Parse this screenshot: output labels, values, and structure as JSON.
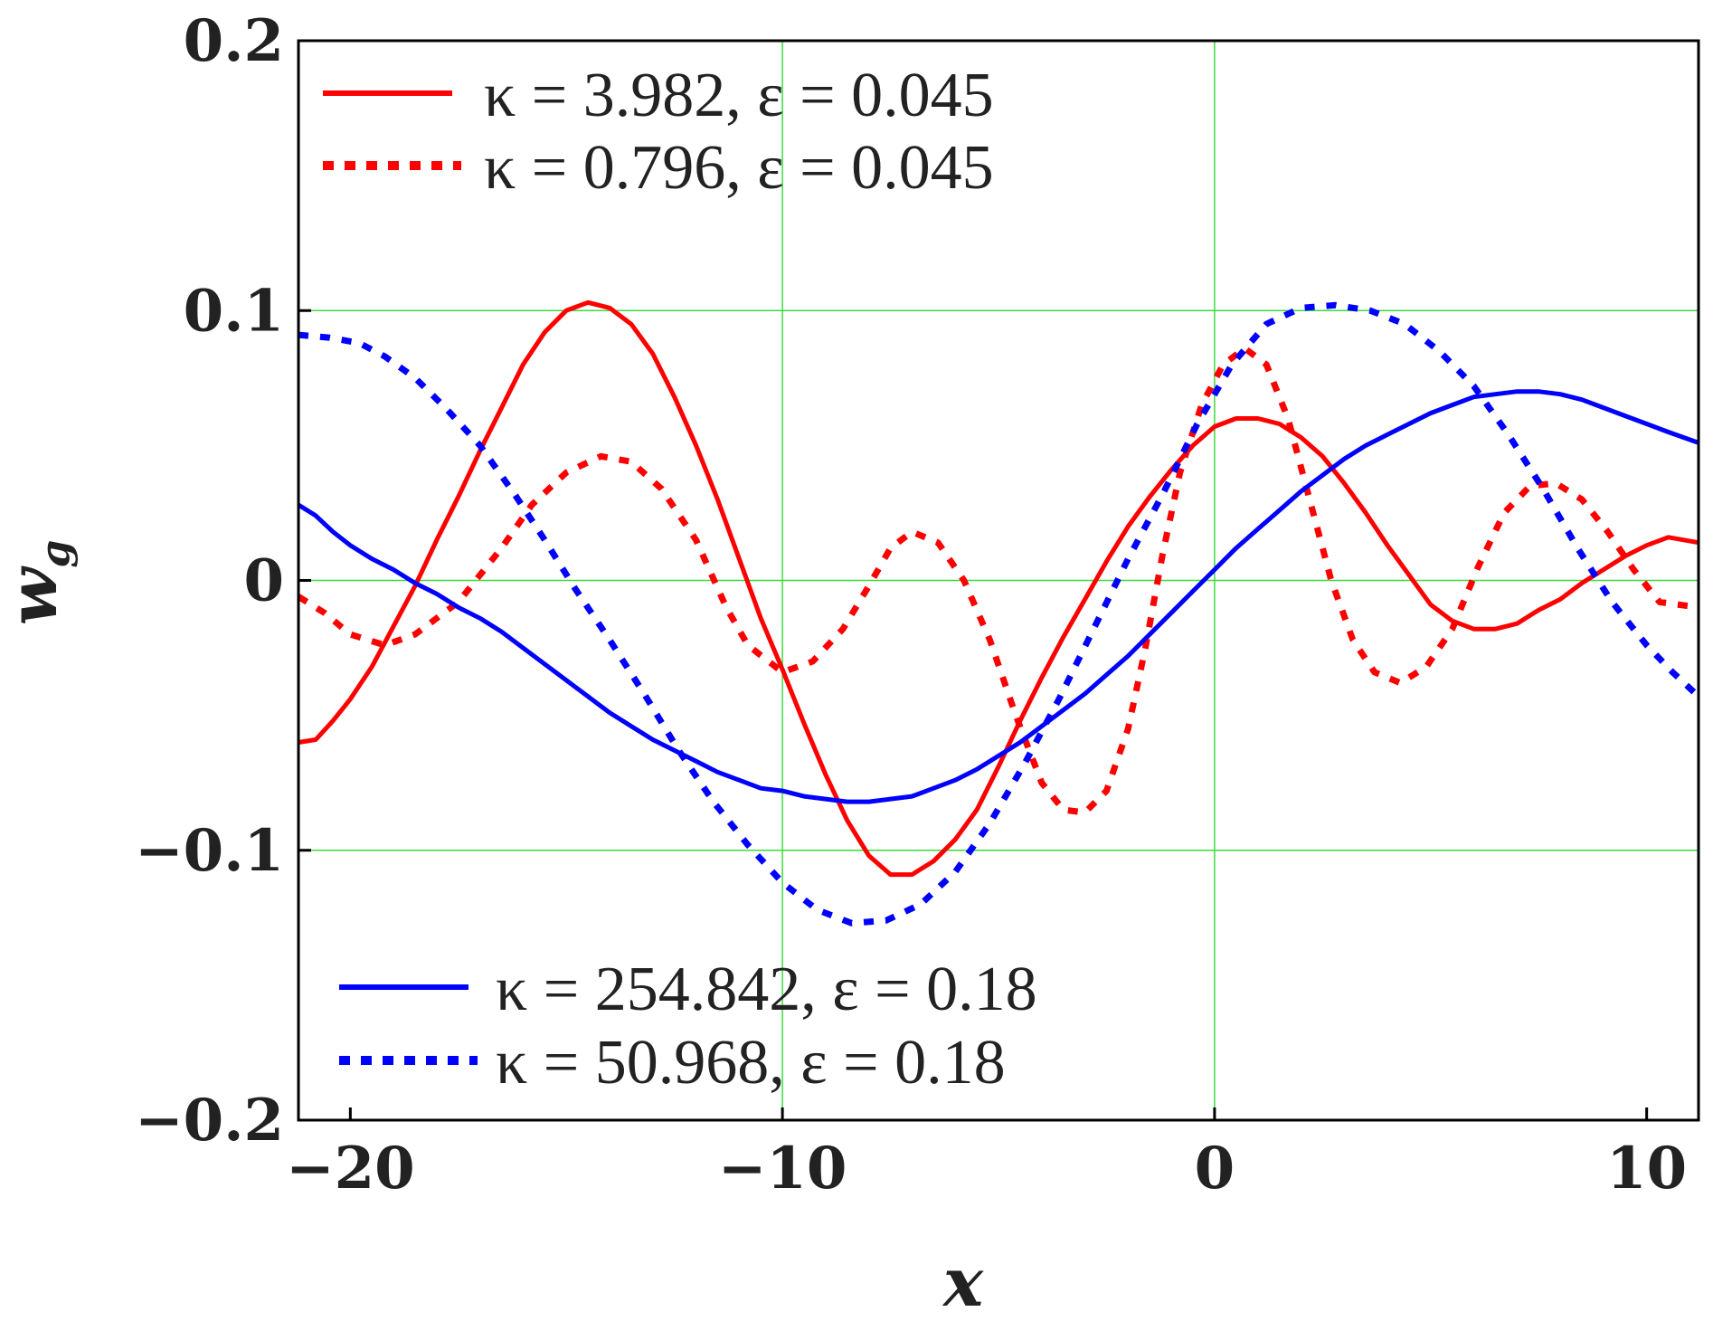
{
  "colors": {
    "grid": "#3ddc3d",
    "red": "#ff0000",
    "blue": "#0000ff",
    "frame": "#000000",
    "text": "#222222"
  },
  "chart_data": {
    "type": "line",
    "xlabel": "x",
    "ylabel": "w",
    "ylabel_subscript": "g",
    "xlim": [
      -21.2,
      11.2
    ],
    "ylim": [
      -0.2,
      0.2
    ],
    "x_ticks": [
      -20,
      -10,
      0,
      10
    ],
    "y_ticks": [
      -0.2,
      -0.1,
      0,
      0.1,
      0.2
    ],
    "x_tick_labels": [
      "−20",
      "−10",
      "0",
      "10"
    ],
    "y_tick_labels": [
      "0.2",
      "0.1",
      "0",
      "−0.1",
      "−0.2"
    ],
    "grid": true,
    "grid_x": [
      -10,
      0
    ],
    "grid_y": [
      -0.1,
      0,
      0.1
    ],
    "legend": [
      {
        "placement": "top-left",
        "entries": [
          "κ = 3.982, ε = 0.045",
          "κ = 0.796, ε = 0.045"
        ]
      },
      {
        "placement": "bottom-left",
        "entries": [
          "κ = 254.842, ε = 0.18",
          "κ = 50.968, ε = 0.18"
        ]
      }
    ],
    "series": [
      {
        "name": "κ = 3.982, ε = 0.045",
        "color": "#ff0000",
        "style": "solid",
        "points": [
          [
            -21.2,
            -0.06
          ],
          [
            -20.8,
            -0.059
          ],
          [
            -20.4,
            -0.052
          ],
          [
            -20,
            -0.044
          ],
          [
            -19.5,
            -0.032
          ],
          [
            -19,
            -0.017
          ],
          [
            -18.5,
            -0.002
          ],
          [
            -18,
            0.015
          ],
          [
            -17.5,
            0.031
          ],
          [
            -17,
            0.048
          ],
          [
            -16.5,
            0.064
          ],
          [
            -16,
            0.08
          ],
          [
            -15.5,
            0.092
          ],
          [
            -15,
            0.1
          ],
          [
            -14.5,
            0.103
          ],
          [
            -14,
            0.101
          ],
          [
            -13.5,
            0.095
          ],
          [
            -13,
            0.084
          ],
          [
            -12.5,
            0.068
          ],
          [
            -12,
            0.05
          ],
          [
            -11.5,
            0.03
          ],
          [
            -11,
            0.008
          ],
          [
            -10.5,
            -0.014
          ],
          [
            -10,
            -0.033
          ],
          [
            -9.5,
            -0.053
          ],
          [
            -9,
            -0.072
          ],
          [
            -8.5,
            -0.089
          ],
          [
            -8,
            -0.102
          ],
          [
            -7.5,
            -0.109
          ],
          [
            -7,
            -0.109
          ],
          [
            -6.5,
            -0.104
          ],
          [
            -6,
            -0.096
          ],
          [
            -5.5,
            -0.085
          ],
          [
            -5,
            -0.069
          ],
          [
            -4.5,
            -0.052
          ],
          [
            -4,
            -0.036
          ],
          [
            -3.5,
            -0.021
          ],
          [
            -3,
            -0.007
          ],
          [
            -2.5,
            0.007
          ],
          [
            -2,
            0.02
          ],
          [
            -1.5,
            0.031
          ],
          [
            -1,
            0.041
          ],
          [
            -0.5,
            0.05
          ],
          [
            0,
            0.057
          ],
          [
            0.5,
            0.06
          ],
          [
            1,
            0.06
          ],
          [
            1.5,
            0.058
          ],
          [
            2,
            0.053
          ],
          [
            2.5,
            0.046
          ],
          [
            3,
            0.036
          ],
          [
            3.5,
            0.025
          ],
          [
            4,
            0.013
          ],
          [
            4.5,
            0.002
          ],
          [
            5,
            -0.009
          ],
          [
            5.5,
            -0.015
          ],
          [
            6,
            -0.018
          ],
          [
            6.5,
            -0.018
          ],
          [
            7,
            -0.016
          ],
          [
            7.5,
            -0.011
          ],
          [
            8,
            -0.007
          ],
          [
            8.5,
            -0.001
          ],
          [
            9,
            0.004
          ],
          [
            9.5,
            0.009
          ],
          [
            10,
            0.013
          ],
          [
            10.5,
            0.016
          ],
          [
            11.2,
            0.014
          ]
        ]
      },
      {
        "name": "κ = 0.796, ε = 0.045",
        "color": "#ff0000",
        "style": "dotted",
        "points": [
          [
            -21.2,
            -0.006
          ],
          [
            -20.6,
            -0.012
          ],
          [
            -20,
            -0.02
          ],
          [
            -19.2,
            -0.024
          ],
          [
            -18.5,
            -0.02
          ],
          [
            -17.5,
            -0.008
          ],
          [
            -16.5,
            0.012
          ],
          [
            -15.8,
            0.028
          ],
          [
            -15,
            0.04
          ],
          [
            -14.2,
            0.046
          ],
          [
            -13.5,
            0.044
          ],
          [
            -12.8,
            0.034
          ],
          [
            -12,
            0.015
          ],
          [
            -11.3,
            -0.01
          ],
          [
            -10.8,
            -0.024
          ],
          [
            -10,
            -0.034
          ],
          [
            -9.3,
            -0.03
          ],
          [
            -8.6,
            -0.018
          ],
          [
            -8,
            -0.002
          ],
          [
            -7.5,
            0.012
          ],
          [
            -7,
            0.018
          ],
          [
            -6.4,
            0.014
          ],
          [
            -5.8,
            0.0
          ],
          [
            -5.2,
            -0.022
          ],
          [
            -4.6,
            -0.05
          ],
          [
            -4.0,
            -0.075
          ],
          [
            -3.5,
            -0.085
          ],
          [
            -3.0,
            -0.086
          ],
          [
            -2.5,
            -0.078
          ],
          [
            -2.0,
            -0.055
          ],
          [
            -1.6,
            -0.025
          ],
          [
            -1.2,
            0.01
          ],
          [
            -0.8,
            0.04
          ],
          [
            -0.3,
            0.065
          ],
          [
            0.2,
            0.08
          ],
          [
            0.7,
            0.086
          ],
          [
            1.2,
            0.08
          ],
          [
            1.7,
            0.06
          ],
          [
            2.2,
            0.03
          ],
          [
            2.7,
            0.0
          ],
          [
            3.2,
            -0.022
          ],
          [
            3.7,
            -0.034
          ],
          [
            4.3,
            -0.038
          ],
          [
            4.9,
            -0.032
          ],
          [
            5.5,
            -0.018
          ],
          [
            6.1,
            0.005
          ],
          [
            6.7,
            0.025
          ],
          [
            7.3,
            0.035
          ],
          [
            7.9,
            0.036
          ],
          [
            8.5,
            0.03
          ],
          [
            9.1,
            0.018
          ],
          [
            9.7,
            0.004
          ],
          [
            10.3,
            -0.008
          ],
          [
            11.2,
            -0.01
          ]
        ]
      },
      {
        "name": "κ = 254.842, ε = 0.18",
        "color": "#0000ff",
        "style": "solid",
        "points": [
          [
            -21.2,
            0.028
          ],
          [
            -20.8,
            0.024
          ],
          [
            -20.4,
            0.018
          ],
          [
            -20,
            0.013
          ],
          [
            -19.5,
            0.008
          ],
          [
            -19,
            0.004
          ],
          [
            -18.5,
            -0.001
          ],
          [
            -18,
            -0.005
          ],
          [
            -17.5,
            -0.01
          ],
          [
            -17,
            -0.014
          ],
          [
            -16.5,
            -0.019
          ],
          [
            -16,
            -0.025
          ],
          [
            -15.5,
            -0.031
          ],
          [
            -15,
            -0.037
          ],
          [
            -14.5,
            -0.043
          ],
          [
            -14,
            -0.049
          ],
          [
            -13.5,
            -0.054
          ],
          [
            -13,
            -0.059
          ],
          [
            -12.5,
            -0.063
          ],
          [
            -12,
            -0.067
          ],
          [
            -11.5,
            -0.071
          ],
          [
            -11,
            -0.074
          ],
          [
            -10.5,
            -0.077
          ],
          [
            -10,
            -0.078
          ],
          [
            -9.5,
            -0.08
          ],
          [
            -9,
            -0.081
          ],
          [
            -8.5,
            -0.082
          ],
          [
            -8,
            -0.082
          ],
          [
            -7.5,
            -0.081
          ],
          [
            -7,
            -0.08
          ],
          [
            -6.5,
            -0.077
          ],
          [
            -6,
            -0.074
          ],
          [
            -5.5,
            -0.07
          ],
          [
            -5,
            -0.065
          ],
          [
            -4.5,
            -0.06
          ],
          [
            -4,
            -0.054
          ],
          [
            -3.5,
            -0.048
          ],
          [
            -3,
            -0.042
          ],
          [
            -2.5,
            -0.035
          ],
          [
            -2,
            -0.028
          ],
          [
            -1.5,
            -0.02
          ],
          [
            -1,
            -0.012
          ],
          [
            -0.5,
            -0.004
          ],
          [
            0,
            0.004
          ],
          [
            0.5,
            0.012
          ],
          [
            1,
            0.019
          ],
          [
            1.5,
            0.026
          ],
          [
            2,
            0.033
          ],
          [
            2.5,
            0.039
          ],
          [
            3,
            0.045
          ],
          [
            3.5,
            0.05
          ],
          [
            4,
            0.054
          ],
          [
            4.5,
            0.058
          ],
          [
            5,
            0.062
          ],
          [
            5.5,
            0.065
          ],
          [
            6,
            0.068
          ],
          [
            6.5,
            0.069
          ],
          [
            7,
            0.07
          ],
          [
            7.5,
            0.07
          ],
          [
            8,
            0.069
          ],
          [
            8.5,
            0.067
          ],
          [
            9,
            0.064
          ],
          [
            9.5,
            0.061
          ],
          [
            10,
            0.058
          ],
          [
            10.5,
            0.055
          ],
          [
            11.2,
            0.051
          ]
        ]
      },
      {
        "name": "κ = 50.968, ε = 0.18",
        "color": "#0000ff",
        "style": "dotted",
        "points": [
          [
            -21.2,
            0.091
          ],
          [
            -20.5,
            0.09
          ],
          [
            -19.8,
            0.088
          ],
          [
            -19.2,
            0.083
          ],
          [
            -18.5,
            0.075
          ],
          [
            -17.8,
            0.064
          ],
          [
            -17,
            0.05
          ],
          [
            -16.2,
            0.032
          ],
          [
            -15.5,
            0.015
          ],
          [
            -14.8,
            -0.003
          ],
          [
            -14,
            -0.022
          ],
          [
            -13.2,
            -0.042
          ],
          [
            -12.4,
            -0.063
          ],
          [
            -11.6,
            -0.082
          ],
          [
            -10.8,
            -0.098
          ],
          [
            -10,
            -0.112
          ],
          [
            -9.2,
            -0.122
          ],
          [
            -8.4,
            -0.127
          ],
          [
            -7.6,
            -0.126
          ],
          [
            -6.8,
            -0.12
          ],
          [
            -6,
            -0.108
          ],
          [
            -5.2,
            -0.09
          ],
          [
            -4.4,
            -0.068
          ],
          [
            -3.6,
            -0.044
          ],
          [
            -2.8,
            -0.018
          ],
          [
            -2,
            0.008
          ],
          [
            -1.2,
            0.032
          ],
          [
            -0.4,
            0.058
          ],
          [
            0.4,
            0.08
          ],
          [
            1.2,
            0.095
          ],
          [
            2,
            0.101
          ],
          [
            2.8,
            0.102
          ],
          [
            3.6,
            0.1
          ],
          [
            4.4,
            0.095
          ],
          [
            5.2,
            0.085
          ],
          [
            6,
            0.072
          ],
          [
            6.8,
            0.054
          ],
          [
            7.6,
            0.034
          ],
          [
            8.4,
            0.012
          ],
          [
            9.2,
            -0.008
          ],
          [
            10,
            -0.024
          ],
          [
            10.6,
            -0.034
          ],
          [
            11.2,
            -0.043
          ]
        ]
      }
    ]
  }
}
